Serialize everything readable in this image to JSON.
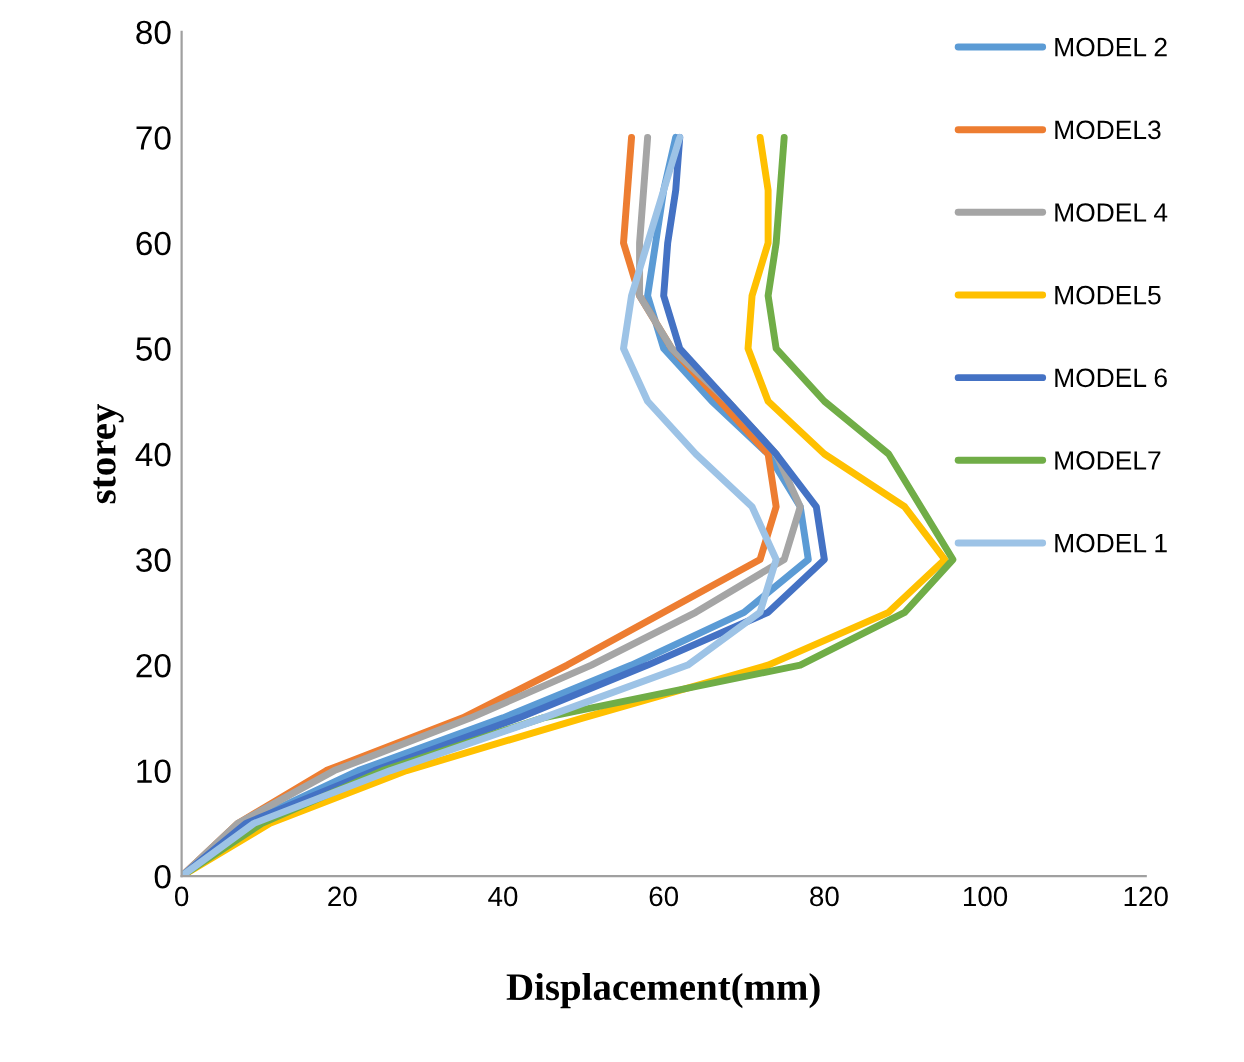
{
  "chart_data": {
    "type": "line",
    "xlabel": "Displacement(mm)",
    "ylabel": "storey",
    "xlim": [
      0,
      120
    ],
    "xticks": [
      0,
      20,
      40,
      60,
      80,
      100,
      120
    ],
    "ylim": [
      0,
      80
    ],
    "yticks": [
      0,
      10,
      20,
      30,
      40,
      50,
      60,
      70,
      80
    ],
    "grid": false,
    "legend": "right",
    "marker": "none",
    "line_style": "solid",
    "series": [
      {
        "name": "MODEL 2",
        "color": "#5b9bd5",
        "x": [
          0,
          8,
          22,
          40,
          56,
          70,
          78,
          77,
          73,
          66,
          60,
          58,
          59,
          60,
          61.5
        ],
        "values": [
          0,
          5,
          10,
          15,
          20,
          25,
          30,
          35,
          40,
          45,
          50,
          55,
          60,
          65,
          70
        ]
      },
      {
        "name": "MODEL3",
        "color": "#ed7d31",
        "x": [
          0,
          7,
          18,
          35,
          48,
          60,
          72,
          74,
          73,
          67,
          61,
          57,
          55,
          55.5,
          56
        ],
        "values": [
          0,
          5,
          10,
          15,
          20,
          25,
          30,
          35,
          40,
          45,
          50,
          55,
          60,
          65,
          70
        ]
      },
      {
        "name": "MODEL 4",
        "color": "#a5a5a5",
        "x": [
          0,
          7,
          19,
          36,
          51,
          64,
          75,
          77,
          74,
          68,
          61,
          57,
          57,
          57.5,
          58
        ],
        "values": [
          0,
          5,
          10,
          15,
          20,
          25,
          30,
          35,
          40,
          45,
          50,
          55,
          60,
          65,
          70
        ]
      },
      {
        "name": "MODEL5",
        "color": "#ffc000",
        "x": [
          0,
          11,
          28,
          50,
          73,
          88,
          95,
          90,
          80,
          73,
          70.5,
          71,
          73,
          73,
          72
        ],
        "values": [
          0,
          5,
          10,
          15,
          20,
          25,
          30,
          35,
          40,
          45,
          50,
          55,
          60,
          65,
          70
        ]
      },
      {
        "name": "MODEL 6",
        "color": "#4472c4",
        "x": [
          0,
          8,
          24,
          42,
          58,
          73,
          80,
          79,
          74,
          68,
          62,
          60,
          60.5,
          61.5,
          62
        ],
        "values": [
          0,
          5,
          10,
          15,
          20,
          25,
          30,
          35,
          40,
          45,
          50,
          55,
          60,
          65,
          70
        ]
      },
      {
        "name": "MODEL7",
        "color": "#70ad47",
        "x": [
          0,
          10,
          25,
          45,
          77,
          90,
          96,
          92,
          88,
          80,
          74,
          73,
          74,
          74.5,
          75
        ],
        "values": [
          0,
          5,
          10,
          15,
          20,
          25,
          30,
          35,
          40,
          45,
          50,
          55,
          60,
          65,
          70
        ]
      },
      {
        "name": "MODEL 1",
        "color": "#9dc3e6",
        "x": [
          0,
          9,
          26,
          45,
          63,
          72,
          74,
          71,
          64,
          58,
          55,
          56,
          58,
          60,
          62
        ],
        "values": [
          0,
          5,
          10,
          15,
          20,
          25,
          30,
          35,
          40,
          45,
          50,
          55,
          60,
          65,
          70
        ]
      }
    ]
  }
}
